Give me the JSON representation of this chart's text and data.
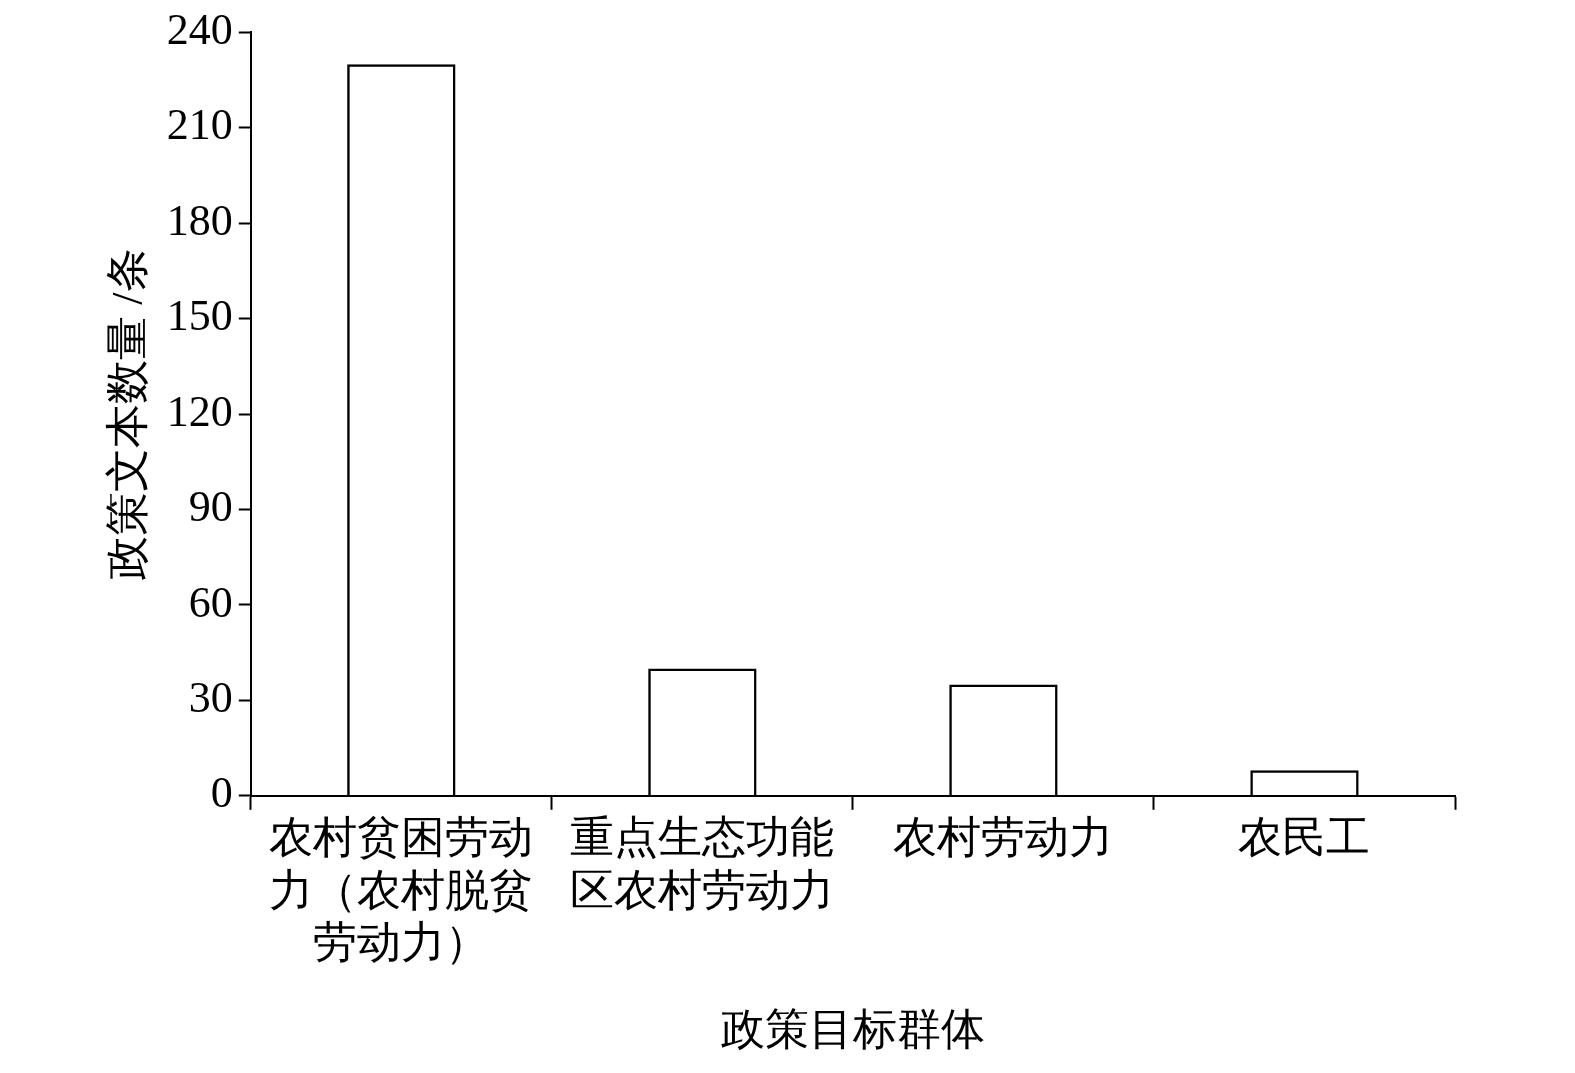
{
  "chart_data": {
    "type": "bar",
    "xlabel": "政策目标群体",
    "ylabel": "政策文本数量 /条",
    "categories": [
      "农村贫困劳动力（农村脱贫劳动力）",
      "重点生态功能区农村劳动力",
      "农村劳动力",
      "农民工"
    ],
    "values": [
      230,
      40,
      35,
      8
    ],
    "color": "#000000",
    "ylim": [
      0,
      240
    ],
    "yticks": [
      0,
      30,
      60,
      90,
      120,
      150,
      180,
      210,
      240
    ],
    "grid": false,
    "legend": false
  }
}
